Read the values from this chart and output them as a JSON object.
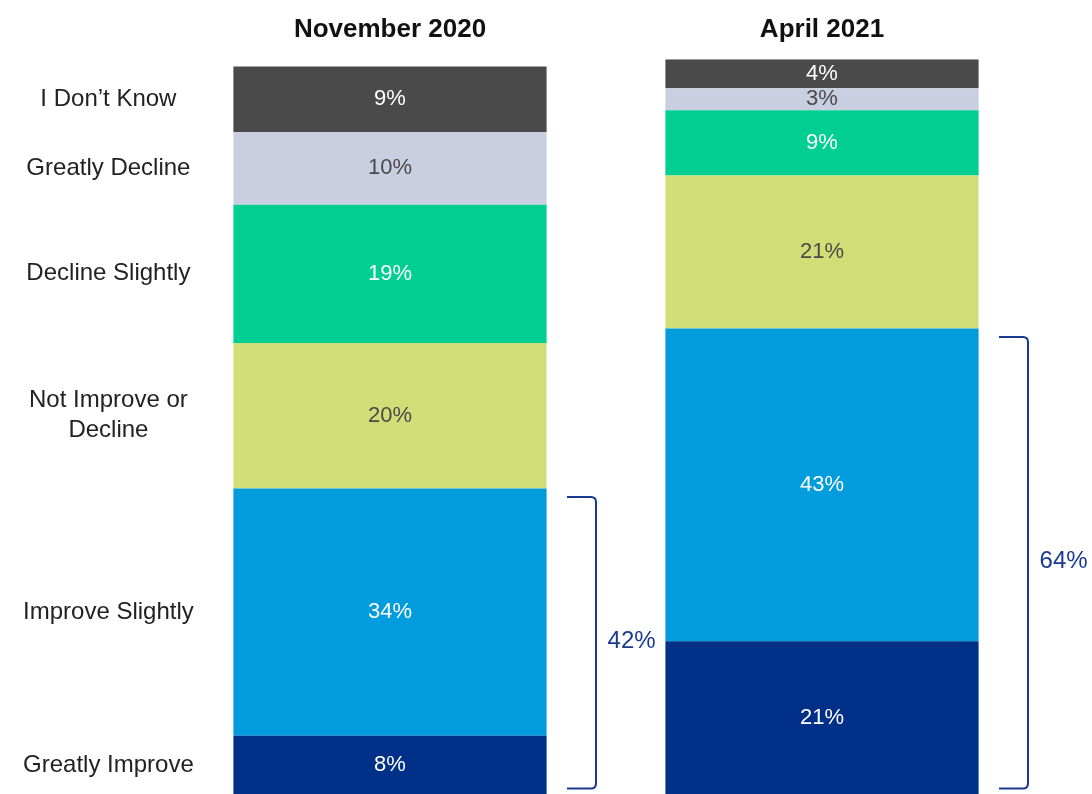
{
  "chart_data": {
    "type": "bar",
    "stacked": true,
    "categories": [
      "November 2020",
      "April 2021"
    ],
    "ylim": [
      0,
      101
    ],
    "legend": false,
    "series": [
      {
        "name": "Greatly Improve",
        "color": "#003087",
        "values": [
          8,
          21
        ],
        "value_labels": [
          "8%",
          "21%"
        ]
      },
      {
        "name": "Improve Slightly",
        "color": "#009cde",
        "values": [
          34,
          43
        ],
        "value_labels": [
          "34%",
          "43%"
        ]
      },
      {
        "name": "Not Improve or Decline",
        "color": "#d1de77",
        "values": [
          20,
          21
        ],
        "value_labels": [
          "20%",
          "21%"
        ]
      },
      {
        "name": "Decline Slightly",
        "color": "#00cf92",
        "values": [
          19,
          9
        ],
        "value_labels": [
          "19%",
          "9%"
        ]
      },
      {
        "name": "Greatly Decline",
        "color": "#c9cfe1",
        "values": [
          10,
          3
        ],
        "value_labels": [
          "10%",
          "3%"
        ]
      },
      {
        "name": "I Don’t Know",
        "color": "#4a4a4a",
        "values": [
          9,
          4
        ],
        "value_labels": [
          "9%",
          "4%"
        ]
      }
    ],
    "annotations": [
      "42%",
      "64%"
    ]
  }
}
